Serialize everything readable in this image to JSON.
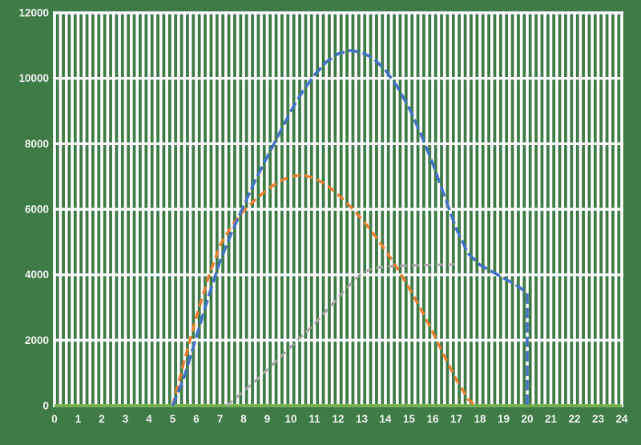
{
  "chart_data": {
    "type": "line",
    "title": "",
    "xlabel": "",
    "ylabel": "",
    "xlim": [
      0,
      24
    ],
    "ylim": [
      0,
      12000
    ],
    "x_ticks": [
      0,
      1,
      2,
      3,
      4,
      5,
      6,
      7,
      8,
      9,
      10,
      11,
      12,
      13,
      14,
      15,
      16,
      17,
      18,
      19,
      20,
      21,
      22,
      23,
      24
    ],
    "y_ticks": [
      0,
      2000,
      4000,
      6000,
      8000,
      10000,
      12000
    ],
    "grid": {
      "show": true,
      "color": "#ffffff",
      "minor_x_step": 0.25,
      "vertical_width": 3.6,
      "horizontal_width": 3.4
    },
    "plot_background": "#3e7b46",
    "label_color": "#f2f2f2",
    "legend": "none",
    "series": [
      {
        "name": "series-blue",
        "color": "#4472c4",
        "style": "dashed",
        "dash": [
          13,
          5
        ],
        "width": 3.6,
        "points": [
          [
            5,
            0
          ],
          [
            5.5,
            900
          ],
          [
            6,
            2100
          ],
          [
            6.5,
            3300
          ],
          [
            7,
            4400
          ],
          [
            7.5,
            5300
          ],
          [
            8,
            6100
          ],
          [
            8.5,
            6900
          ],
          [
            9,
            7600
          ],
          [
            9.5,
            8300
          ],
          [
            10,
            9000
          ],
          [
            10.5,
            9600
          ],
          [
            11,
            10100
          ],
          [
            11.5,
            10500
          ],
          [
            12,
            10750
          ],
          [
            12.5,
            10850
          ],
          [
            13,
            10800
          ],
          [
            13.5,
            10600
          ],
          [
            14,
            10250
          ],
          [
            14.5,
            9750
          ],
          [
            15,
            9100
          ],
          [
            15.5,
            8300
          ],
          [
            16,
            7400
          ],
          [
            16.5,
            6400
          ],
          [
            17,
            5400
          ],
          [
            17.5,
            4650
          ],
          [
            18,
            4300
          ],
          [
            18.5,
            4100
          ],
          [
            19,
            3900
          ],
          [
            19.5,
            3700
          ],
          [
            20,
            3450
          ],
          [
            20,
            0
          ]
        ]
      },
      {
        "name": "series-orange",
        "color": "#ed7d31",
        "style": "dashed",
        "dash": [
          10,
          6
        ],
        "width": 3.4,
        "points": [
          [
            5,
            0
          ],
          [
            5.5,
            1400
          ],
          [
            6,
            2700
          ],
          [
            6.5,
            3900
          ],
          [
            7,
            4900
          ],
          [
            7.5,
            5500
          ],
          [
            8,
            5950
          ],
          [
            8.5,
            6300
          ],
          [
            9,
            6600
          ],
          [
            9.5,
            6850
          ],
          [
            10,
            7000
          ],
          [
            10.5,
            7050
          ],
          [
            11,
            6950
          ],
          [
            11.5,
            6750
          ],
          [
            12,
            6450
          ],
          [
            12.5,
            6100
          ],
          [
            13,
            5700
          ],
          [
            13.5,
            5250
          ],
          [
            14,
            4750
          ],
          [
            14.5,
            4200
          ],
          [
            15,
            3600
          ],
          [
            15.5,
            2950
          ],
          [
            16,
            2250
          ],
          [
            16.5,
            1500
          ],
          [
            17,
            800
          ],
          [
            17.5,
            200
          ],
          [
            17.8,
            0
          ]
        ]
      },
      {
        "name": "series-gray",
        "color": "#a6a6a6",
        "style": "dashed",
        "dash": [
          9,
          6
        ],
        "width": 3.0,
        "points": [
          [
            7.3,
            0
          ],
          [
            8,
            450
          ],
          [
            8.5,
            750
          ],
          [
            9,
            1100
          ],
          [
            9.5,
            1450
          ],
          [
            10,
            1800
          ],
          [
            10.5,
            2150
          ],
          [
            11,
            2500
          ],
          [
            11.5,
            2900
          ],
          [
            12,
            3300
          ],
          [
            12.5,
            3700
          ],
          [
            13,
            4050
          ],
          [
            13.5,
            4200
          ],
          [
            14,
            4250
          ],
          [
            14.5,
            4270
          ],
          [
            15,
            4280
          ],
          [
            15.5,
            4290
          ],
          [
            16,
            4300
          ],
          [
            16.5,
            4310
          ],
          [
            17,
            4320
          ]
        ]
      },
      {
        "name": "series-green",
        "color": "#70ad47",
        "style": "solid",
        "dash": [],
        "width": 3.4,
        "points": [
          [
            0,
            0
          ],
          [
            24,
            0
          ]
        ]
      }
    ]
  }
}
